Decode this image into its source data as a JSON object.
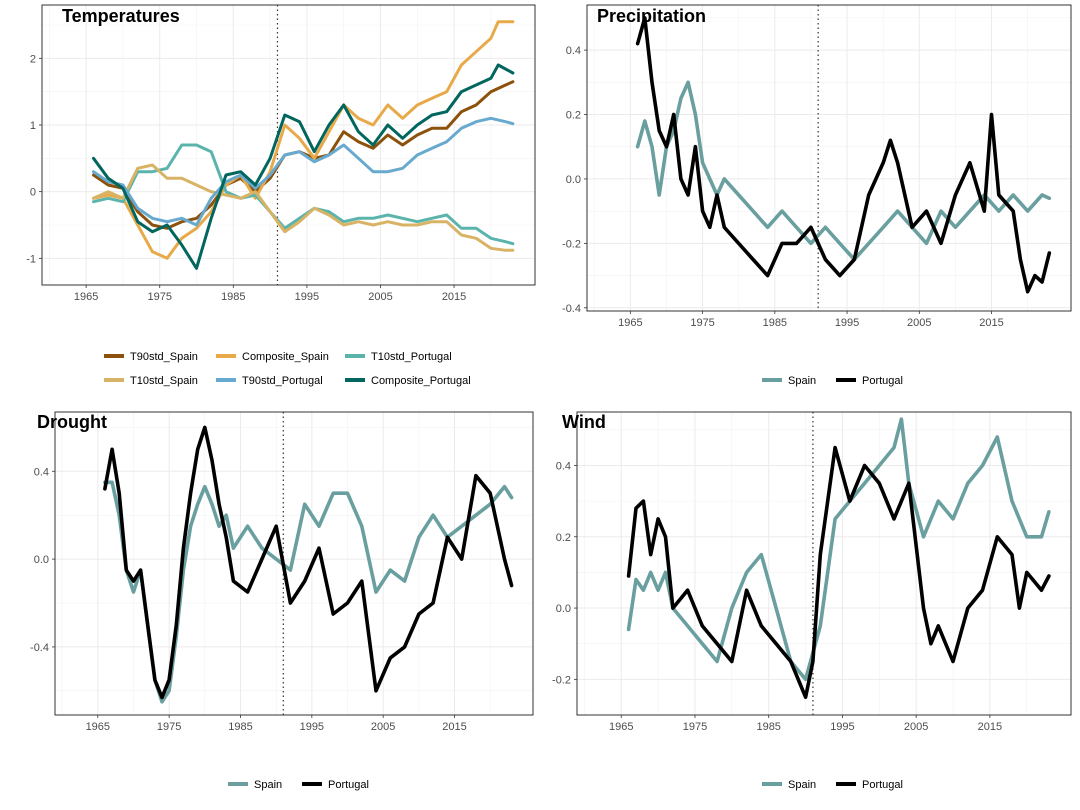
{
  "chart_data": [
    {
      "type": "line",
      "title": "Temperatures",
      "xlabel": "",
      "ylabel": "",
      "xlim": [
        1959,
        2026
      ],
      "ylim": [
        -1.4,
        2.8
      ],
      "xticks": [
        1965,
        1975,
        1985,
        1995,
        2005,
        2015
      ],
      "yticks": [
        -1,
        0,
        1,
        2
      ],
      "tick_labels": [
        "1965",
        "1975",
        "1985",
        "1995",
        "2005",
        "2015"
      ],
      "ytick_labels": [
        "-1",
        "0",
        "1",
        "2"
      ],
      "vline": 1991,
      "grid": true,
      "legend_position": "bottom",
      "legend_layout": [
        "T90std_Spain",
        "Composite_Spain",
        "T10std_Portugal",
        "T10std_Spain",
        "T90std_Portugal",
        "Composite_Portugal"
      ],
      "series": [
        {
          "name": "T90std_Spain",
          "color": "#8c510a",
          "x": [
            1966,
            1968,
            1970,
            1972,
            1974,
            1976,
            1978,
            1980,
            1982,
            1984,
            1986,
            1988,
            1990,
            1992,
            1994,
            1996,
            1998,
            2000,
            2002,
            2004,
            2006,
            2008,
            2010,
            2012,
            2014,
            2016,
            2018,
            2020,
            2022,
            2023
          ],
          "y": [
            0.25,
            0.1,
            0.05,
            -0.3,
            -0.5,
            -0.55,
            -0.45,
            -0.4,
            -0.2,
            0.1,
            0.2,
            0.0,
            0.2,
            0.55,
            0.6,
            0.5,
            0.55,
            0.9,
            0.75,
            0.65,
            0.85,
            0.7,
            0.85,
            0.95,
            0.95,
            1.2,
            1.3,
            1.5,
            1.6,
            1.65
          ]
        },
        {
          "name": "Composite_Spain",
          "color": "#e8a948",
          "x": [
            1966,
            1968,
            1970,
            1972,
            1974,
            1976,
            1978,
            1980,
            1982,
            1984,
            1986,
            1988,
            1990,
            1992,
            1994,
            1996,
            1998,
            2000,
            2002,
            2004,
            2006,
            2008,
            2010,
            2012,
            2014,
            2016,
            2018,
            2020,
            2021,
            2023
          ],
          "y": [
            -0.1,
            -0.05,
            -0.1,
            -0.5,
            -0.9,
            -1.0,
            -0.7,
            -0.55,
            -0.3,
            0.1,
            0.25,
            -0.1,
            0.3,
            1.0,
            0.8,
            0.5,
            0.9,
            1.3,
            1.1,
            1.0,
            1.3,
            1.1,
            1.3,
            1.4,
            1.5,
            1.9,
            2.1,
            2.3,
            2.55,
            2.55
          ]
        },
        {
          "name": "T10std_Portugal",
          "color": "#5ab4ac",
          "x": [
            1966,
            1968,
            1970,
            1972,
            1974,
            1976,
            1978,
            1980,
            1982,
            1984,
            1986,
            1988,
            1990,
            1992,
            1994,
            1996,
            1998,
            2000,
            2002,
            2004,
            2006,
            2008,
            2010,
            2012,
            2014,
            2016,
            2018,
            2020,
            2022,
            2023
          ],
          "y": [
            -0.15,
            -0.1,
            -0.15,
            0.3,
            0.3,
            0.35,
            0.7,
            0.7,
            0.6,
            0.0,
            -0.1,
            -0.05,
            -0.3,
            -0.55,
            -0.4,
            -0.25,
            -0.3,
            -0.45,
            -0.4,
            -0.4,
            -0.35,
            -0.4,
            -0.45,
            -0.4,
            -0.35,
            -0.55,
            -0.55,
            -0.7,
            -0.75,
            -0.78
          ]
        },
        {
          "name": "T10std_Spain",
          "color": "#d8b365",
          "x": [
            1966,
            1968,
            1970,
            1972,
            1974,
            1976,
            1978,
            1980,
            1982,
            1984,
            1986,
            1988,
            1990,
            1992,
            1994,
            1996,
            1998,
            2000,
            2002,
            2004,
            2006,
            2008,
            2010,
            2012,
            2014,
            2016,
            2018,
            2020,
            2022,
            2023
          ],
          "y": [
            -0.1,
            0.0,
            -0.1,
            0.35,
            0.4,
            0.2,
            0.2,
            0.1,
            0.0,
            -0.05,
            -0.1,
            0.0,
            -0.3,
            -0.6,
            -0.45,
            -0.25,
            -0.35,
            -0.5,
            -0.45,
            -0.5,
            -0.45,
            -0.5,
            -0.5,
            -0.45,
            -0.45,
            -0.65,
            -0.7,
            -0.85,
            -0.88,
            -0.88
          ]
        },
        {
          "name": "T90std_Portugal",
          "color": "#67a9cf",
          "x": [
            1966,
            1968,
            1970,
            1972,
            1974,
            1976,
            1978,
            1980,
            1982,
            1984,
            1986,
            1988,
            1990,
            1992,
            1994,
            1996,
            1998,
            2000,
            2002,
            2004,
            2006,
            2008,
            2010,
            2012,
            2014,
            2016,
            2018,
            2020,
            2022,
            2023
          ],
          "y": [
            0.3,
            0.15,
            0.1,
            -0.25,
            -0.4,
            -0.45,
            -0.4,
            -0.5,
            -0.1,
            0.15,
            0.25,
            0.05,
            0.25,
            0.55,
            0.6,
            0.45,
            0.55,
            0.7,
            0.5,
            0.3,
            0.3,
            0.35,
            0.55,
            0.65,
            0.75,
            0.95,
            1.05,
            1.1,
            1.05,
            1.02
          ]
        },
        {
          "name": "Composite_Portugal",
          "color": "#01665e",
          "x": [
            1966,
            1968,
            1970,
            1972,
            1974,
            1976,
            1978,
            1980,
            1982,
            1984,
            1986,
            1988,
            1990,
            1992,
            1994,
            1996,
            1998,
            2000,
            2002,
            2004,
            2006,
            2008,
            2010,
            2012,
            2014,
            2016,
            2018,
            2020,
            2021,
            2023
          ],
          "y": [
            0.5,
            0.2,
            0.05,
            -0.45,
            -0.6,
            -0.5,
            -0.8,
            -1.15,
            -0.4,
            0.25,
            0.3,
            0.1,
            0.5,
            1.15,
            1.05,
            0.6,
            1.0,
            1.3,
            0.9,
            0.7,
            1.0,
            0.8,
            1.0,
            1.15,
            1.2,
            1.5,
            1.6,
            1.7,
            1.9,
            1.78
          ]
        }
      ]
    },
    {
      "type": "line",
      "title": "Precipitation",
      "xlabel": "",
      "ylabel": "",
      "xlim": [
        1959,
        2026
      ],
      "ylim": [
        -0.41,
        0.54
      ],
      "xticks": [
        1965,
        1975,
        1985,
        1995,
        2005,
        2015
      ],
      "yticks": [
        -0.4,
        -0.2,
        0.0,
        0.2,
        0.4
      ],
      "tick_labels": [
        "1965",
        "1975",
        "1985",
        "1995",
        "2005",
        "2015"
      ],
      "ytick_labels": [
        "-0.4",
        "-0.2",
        "0.0",
        "0.2",
        "0.4"
      ],
      "vline": 1991,
      "grid": true,
      "legend_position": "bottom",
      "series": [
        {
          "name": "Spain",
          "color": "#6a9fa0",
          "x": [
            1966,
            1967,
            1968,
            1969,
            1970,
            1971,
            1972,
            1973,
            1974,
            1975,
            1976,
            1977,
            1978,
            1980,
            1982,
            1984,
            1986,
            1988,
            1990,
            1992,
            1994,
            1996,
            1998,
            2000,
            2002,
            2004,
            2006,
            2008,
            2010,
            2012,
            2014,
            2016,
            2018,
            2020,
            2022,
            2023
          ],
          "y": [
            0.1,
            0.18,
            0.1,
            -0.05,
            0.1,
            0.15,
            0.25,
            0.3,
            0.2,
            0.05,
            0.0,
            -0.05,
            0.0,
            -0.05,
            -0.1,
            -0.15,
            -0.1,
            -0.15,
            -0.2,
            -0.15,
            -0.2,
            -0.25,
            -0.2,
            -0.15,
            -0.1,
            -0.15,
            -0.2,
            -0.1,
            -0.15,
            -0.1,
            -0.05,
            -0.1,
            -0.05,
            -0.1,
            -0.05,
            -0.06
          ]
        },
        {
          "name": "Portugal",
          "color": "#000000",
          "x": [
            1966,
            1967,
            1968,
            1969,
            1970,
            1971,
            1972,
            1973,
            1974,
            1975,
            1976,
            1977,
            1978,
            1980,
            1982,
            1984,
            1986,
            1988,
            1990,
            1992,
            1994,
            1996,
            1998,
            2000,
            2001,
            2002,
            2004,
            2006,
            2008,
            2010,
            2012,
            2014,
            2015,
            2016,
            2018,
            2019,
            2020,
            2021,
            2022,
            2023
          ],
          "y": [
            0.42,
            0.5,
            0.3,
            0.15,
            0.1,
            0.2,
            0.0,
            -0.05,
            0.1,
            -0.1,
            -0.15,
            -0.05,
            -0.15,
            -0.2,
            -0.25,
            -0.3,
            -0.2,
            -0.2,
            -0.15,
            -0.25,
            -0.3,
            -0.25,
            -0.05,
            0.05,
            0.12,
            0.05,
            -0.15,
            -0.1,
            -0.2,
            -0.05,
            0.05,
            -0.1,
            0.2,
            -0.05,
            -0.1,
            -0.25,
            -0.35,
            -0.3,
            -0.32,
            -0.23
          ]
        }
      ]
    },
    {
      "type": "line",
      "title": "Drought",
      "xlabel": "",
      "ylabel": "",
      "xlim": [
        1959,
        2026
      ],
      "ylim": [
        -0.71,
        0.67
      ],
      "xticks": [
        1965,
        1975,
        1985,
        1995,
        2005,
        2015
      ],
      "yticks": [
        -0.4,
        0.0,
        0.4
      ],
      "tick_labels": [
        "1965",
        "1975",
        "1985",
        "1995",
        "2005",
        "2015"
      ],
      "ytick_labels": [
        "-0.4",
        "0.0",
        "0.4"
      ],
      "vline": 1991,
      "grid": true,
      "legend_position": "bottom",
      "series": [
        {
          "name": "Spain",
          "color": "#6a9fa0",
          "x": [
            1966,
            1967,
            1968,
            1969,
            1970,
            1971,
            1972,
            1973,
            1974,
            1975,
            1976,
            1977,
            1978,
            1979,
            1980,
            1981,
            1982,
            1983,
            1984,
            1986,
            1988,
            1990,
            1992,
            1994,
            1996,
            1998,
            2000,
            2002,
            2004,
            2006,
            2008,
            2010,
            2012,
            2014,
            2016,
            2018,
            2020,
            2022,
            2023
          ],
          "y": [
            0.35,
            0.35,
            0.2,
            -0.05,
            -0.15,
            -0.05,
            -0.3,
            -0.55,
            -0.65,
            -0.6,
            -0.35,
            -0.05,
            0.15,
            0.25,
            0.33,
            0.25,
            0.15,
            0.2,
            0.05,
            0.15,
            0.05,
            0.0,
            -0.05,
            0.25,
            0.15,
            0.3,
            0.3,
            0.15,
            -0.15,
            -0.05,
            -0.1,
            0.1,
            0.2,
            0.1,
            0.15,
            0.2,
            0.25,
            0.33,
            0.28
          ]
        },
        {
          "name": "Portugal",
          "color": "#000000",
          "x": [
            1966,
            1967,
            1968,
            1969,
            1970,
            1971,
            1972,
            1973,
            1974,
            1975,
            1976,
            1977,
            1978,
            1979,
            1980,
            1981,
            1982,
            1983,
            1984,
            1986,
            1988,
            1990,
            1992,
            1994,
            1996,
            1998,
            2000,
            2002,
            2004,
            2006,
            2008,
            2010,
            2012,
            2014,
            2016,
            2018,
            2020,
            2022,
            2023
          ],
          "y": [
            0.32,
            0.5,
            0.3,
            -0.05,
            -0.1,
            -0.05,
            -0.3,
            -0.55,
            -0.63,
            -0.55,
            -0.3,
            0.05,
            0.3,
            0.5,
            0.6,
            0.45,
            0.25,
            0.1,
            -0.1,
            -0.15,
            0.0,
            0.15,
            -0.2,
            -0.1,
            0.05,
            -0.25,
            -0.2,
            -0.1,
            -0.6,
            -0.45,
            -0.4,
            -0.25,
            -0.2,
            0.1,
            0.0,
            0.38,
            0.3,
            0.0,
            -0.12
          ]
        }
      ]
    },
    {
      "type": "line",
      "title": "Wind",
      "xlabel": "",
      "ylabel": "",
      "xlim": [
        1959,
        2026
      ],
      "ylim": [
        -0.3,
        0.55
      ],
      "xticks": [
        1965,
        1975,
        1985,
        1995,
        2005,
        2015
      ],
      "yticks": [
        -0.2,
        0.0,
        0.2,
        0.4
      ],
      "tick_labels": [
        "1965",
        "1975",
        "1985",
        "1995",
        "2005",
        "2015"
      ],
      "ytick_labels": [
        "-0.2",
        "0.0",
        "0.2",
        "0.4"
      ],
      "vline": 1991,
      "grid": true,
      "legend_position": "bottom",
      "series": [
        {
          "name": "Spain",
          "color": "#6a9fa0",
          "x": [
            1966,
            1967,
            1968,
            1969,
            1970,
            1971,
            1972,
            1974,
            1976,
            1978,
            1980,
            1982,
            1984,
            1986,
            1988,
            1990,
            1992,
            1994,
            1996,
            1998,
            2000,
            2002,
            2003,
            2004,
            2006,
            2008,
            2010,
            2012,
            2014,
            2016,
            2018,
            2020,
            2022,
            2023
          ],
          "y": [
            -0.06,
            0.08,
            0.05,
            0.1,
            0.05,
            0.1,
            0.0,
            -0.05,
            -0.1,
            -0.15,
            0.0,
            0.1,
            0.15,
            0.0,
            -0.15,
            -0.2,
            -0.05,
            0.25,
            0.3,
            0.35,
            0.4,
            0.45,
            0.53,
            0.35,
            0.2,
            0.3,
            0.25,
            0.35,
            0.4,
            0.48,
            0.3,
            0.2,
            0.2,
            0.27
          ]
        },
        {
          "name": "Portugal",
          "color": "#000000",
          "x": [
            1966,
            1967,
            1968,
            1969,
            1970,
            1971,
            1972,
            1974,
            1976,
            1978,
            1980,
            1982,
            1984,
            1986,
            1988,
            1990,
            1991,
            1992,
            1994,
            1996,
            1998,
            2000,
            2002,
            2004,
            2006,
            2007,
            2008,
            2010,
            2012,
            2014,
            2016,
            2018,
            2019,
            2020,
            2022,
            2023
          ],
          "y": [
            0.09,
            0.28,
            0.3,
            0.15,
            0.25,
            0.2,
            0.0,
            0.05,
            -0.05,
            -0.1,
            -0.15,
            0.05,
            -0.05,
            -0.1,
            -0.15,
            -0.25,
            -0.15,
            0.15,
            0.45,
            0.3,
            0.4,
            0.35,
            0.25,
            0.35,
            0.0,
            -0.1,
            -0.05,
            -0.15,
            0.0,
            0.05,
            0.2,
            0.15,
            0.0,
            0.1,
            0.05,
            0.09
          ]
        }
      ]
    }
  ]
}
